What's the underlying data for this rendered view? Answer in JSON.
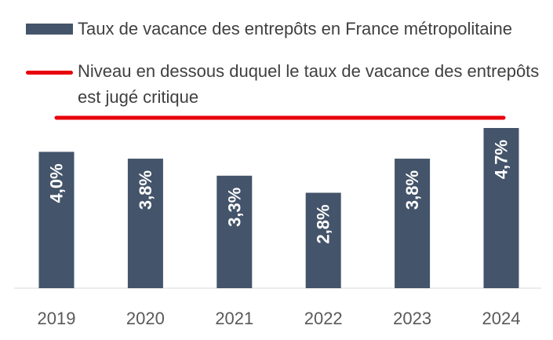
{
  "chart_data": {
    "type": "bar",
    "categories": [
      "2019",
      "2020",
      "2021",
      "2022",
      "2023",
      "2024"
    ],
    "series": [
      {
        "name": "Taux de vacance des entrepôts en France métropolitaine",
        "values": [
          4.0,
          3.8,
          3.3,
          2.8,
          3.8,
          4.7
        ],
        "labels": [
          "4,0%",
          "3,8%",
          "3,3%",
          "2,8%",
          "3,8%",
          "4,7%"
        ],
        "color": "#44546a"
      }
    ],
    "threshold": {
      "name": "Niveau en dessous duquel le taux de vacance des entrepôts est jugé critique",
      "name_lines": [
        "Niveau en dessous duquel le taux de vacance des entrepôts",
        "est jugé critique"
      ],
      "value": 5.0,
      "color": "#e8000b"
    },
    "ylim": [
      0,
      5.3
    ],
    "grid": false,
    "legend_position": "top-left",
    "data_label_orientation": "vertical"
  }
}
